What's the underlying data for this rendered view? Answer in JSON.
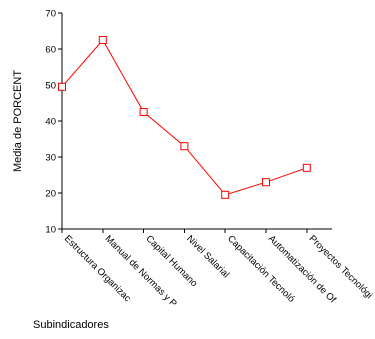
{
  "chart_data": {
    "type": "line",
    "title": "",
    "xlabel": "Subindicadores",
    "ylabel": "Media de PORCENT",
    "ylim": [
      10,
      70
    ],
    "yticks": [
      10,
      20,
      30,
      40,
      50,
      60,
      70
    ],
    "grid": false,
    "legend": "none",
    "categories": [
      "Estructura Organizac",
      "Manual de Normas y P",
      "Capital Humano",
      "Nivel Salarial",
      "Capacitación Tecnoló",
      "Automatización de Of",
      "Proyectos Tecnológi"
    ],
    "series": [
      {
        "values": [
          49.5,
          62.5,
          42.5,
          33,
          19.5,
          23,
          27
        ],
        "color": "#ff0000",
        "marker": "square"
      }
    ]
  }
}
